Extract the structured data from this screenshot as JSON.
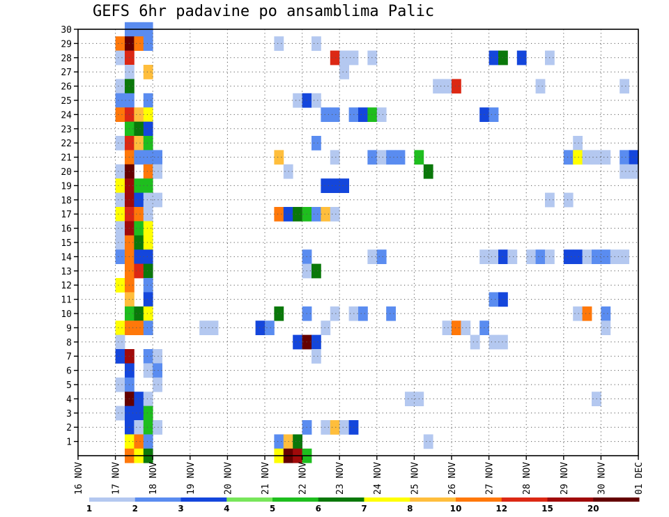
{
  "chart_data": {
    "type": "heatmap",
    "title": "GEFS 6hr padavine po ansamblima Palic",
    "x_ticks": [
      "16 NOV",
      "17 NOV",
      "18 NOV",
      "19 NOV",
      "20 NOV",
      "21 NOV",
      "22 NOV",
      "23 NOV",
      "24 NOV",
      "25 NOV",
      "26 NOV",
      "27 NOV",
      "28 NOV",
      "29 NOV",
      "30 NOV",
      "01 DEC"
    ],
    "y_ticks": [
      "1",
      "2",
      "3",
      "4",
      "5",
      "6",
      "7",
      "8",
      "9",
      "10",
      "11",
      "12",
      "13",
      "14",
      "15",
      "16",
      "17",
      "18",
      "19",
      "20",
      "21",
      "22",
      "23",
      "24",
      "25",
      "26",
      "27",
      "28",
      "29",
      "30"
    ],
    "xlim": [
      "16 NOV",
      "01 DEC"
    ],
    "ylim": [
      0,
      30
    ],
    "x_step_hours": 6,
    "grid": true,
    "colorbar": {
      "labels": [
        "1",
        "2",
        "3",
        "4",
        "5",
        "6",
        "7",
        "8",
        "10",
        "12",
        "15",
        "20"
      ],
      "colors": [
        "#b4c8f0",
        "#5a8cf0",
        "#1446dc",
        "#78e65a",
        "#1ebe1e",
        "#0a780a",
        "#ffff00",
        "#ffbe3c",
        "#ff780a",
        "#dc2814",
        "#a00a0a",
        "#640000"
      ]
    },
    "cells": [
      [
        17.25,
        30,
        2
      ],
      [
        17.5,
        30,
        2
      ],
      [
        17.75,
        30,
        2
      ],
      [
        17.0,
        29,
        10
      ],
      [
        17.25,
        29,
        20
      ],
      [
        17.5,
        29,
        10
      ],
      [
        17.75,
        29,
        2
      ],
      [
        21.25,
        29,
        1
      ],
      [
        22.25,
        29,
        1
      ],
      [
        17.0,
        28,
        1
      ],
      [
        17.25,
        28,
        12
      ],
      [
        22.75,
        28,
        12
      ],
      [
        23.0,
        28,
        1
      ],
      [
        23.25,
        28,
        1
      ],
      [
        23.75,
        28,
        1
      ],
      [
        27.0,
        28,
        3
      ],
      [
        27.25,
        28,
        6
      ],
      [
        27.75,
        28,
        3
      ],
      [
        28.5,
        28,
        1
      ],
      [
        17.25,
        27,
        1
      ],
      [
        17.75,
        27,
        8
      ],
      [
        23.0,
        27,
        1
      ],
      [
        17.0,
        26,
        1
      ],
      [
        17.25,
        26,
        6
      ],
      [
        25.5,
        26,
        1
      ],
      [
        25.75,
        26,
        1
      ],
      [
        26.0,
        26,
        12
      ],
      [
        28.25,
        26,
        1
      ],
      [
        30.5,
        26,
        1
      ],
      [
        17.0,
        25,
        2
      ],
      [
        17.25,
        25,
        2
      ],
      [
        17.75,
        25,
        2
      ],
      [
        21.75,
        25,
        1
      ],
      [
        22.0,
        25,
        3
      ],
      [
        22.25,
        25,
        1
      ],
      [
        17.0,
        24,
        10
      ],
      [
        17.25,
        24,
        12
      ],
      [
        17.5,
        24,
        8
      ],
      [
        17.75,
        24,
        7
      ],
      [
        22.5,
        24,
        2
      ],
      [
        22.75,
        24,
        2
      ],
      [
        23.25,
        24,
        2
      ],
      [
        23.5,
        24,
        3
      ],
      [
        23.75,
        24,
        5
      ],
      [
        24.0,
        24,
        1
      ],
      [
        26.75,
        24,
        3
      ],
      [
        27.0,
        24,
        2
      ],
      [
        17.25,
        23,
        5
      ],
      [
        17.5,
        23,
        6
      ],
      [
        17.75,
        23,
        3
      ],
      [
        17.0,
        22,
        1
      ],
      [
        17.25,
        22,
        12
      ],
      [
        17.5,
        22,
        8
      ],
      [
        17.75,
        22,
        5
      ],
      [
        22.25,
        22,
        2
      ],
      [
        29.25,
        22,
        1
      ],
      [
        17.25,
        21,
        10
      ],
      [
        17.5,
        21,
        2
      ],
      [
        17.75,
        21,
        2
      ],
      [
        18.0,
        21,
        2
      ],
      [
        21.25,
        21,
        8
      ],
      [
        22.75,
        21,
        1
      ],
      [
        23.75,
        21,
        2
      ],
      [
        24.0,
        21,
        1
      ],
      [
        24.25,
        21,
        2
      ],
      [
        24.5,
        21,
        2
      ],
      [
        25.0,
        21,
        5
      ],
      [
        29.0,
        21,
        2
      ],
      [
        29.25,
        21,
        7
      ],
      [
        29.5,
        21,
        1
      ],
      [
        29.75,
        21,
        1
      ],
      [
        30.0,
        21,
        1
      ],
      [
        30.5,
        21,
        2
      ],
      [
        30.75,
        21,
        3
      ],
      [
        17.0,
        20,
        1
      ],
      [
        17.25,
        20,
        20
      ],
      [
        17.75,
        20,
        10
      ],
      [
        18.0,
        20,
        1
      ],
      [
        21.5,
        20,
        1
      ],
      [
        25.25,
        20,
        6
      ],
      [
        30.5,
        20,
        1
      ],
      [
        30.75,
        20,
        1
      ],
      [
        17.0,
        19,
        7
      ],
      [
        17.25,
        19,
        15
      ],
      [
        17.5,
        19,
        5
      ],
      [
        17.75,
        19,
        5
      ],
      [
        22.5,
        19,
        3
      ],
      [
        22.75,
        19,
        3
      ],
      [
        23.0,
        19,
        3
      ],
      [
        17.0,
        18,
        1
      ],
      [
        17.25,
        18,
        15
      ],
      [
        17.5,
        18,
        3
      ],
      [
        17.75,
        18,
        1
      ],
      [
        18.0,
        18,
        1
      ],
      [
        28.5,
        18,
        1
      ],
      [
        29.0,
        18,
        1
      ],
      [
        17.0,
        17,
        7
      ],
      [
        17.25,
        17,
        12
      ],
      [
        17.5,
        17,
        10
      ],
      [
        17.75,
        17,
        1
      ],
      [
        21.25,
        17,
        10
      ],
      [
        21.5,
        17,
        3
      ],
      [
        21.75,
        17,
        6
      ],
      [
        22.0,
        17,
        5
      ],
      [
        22.25,
        17,
        2
      ],
      [
        22.5,
        17,
        8
      ],
      [
        22.75,
        17,
        1
      ],
      [
        17.0,
        16,
        1
      ],
      [
        17.25,
        16,
        15
      ],
      [
        17.5,
        16,
        5
      ],
      [
        17.75,
        16,
        7
      ],
      [
        17.0,
        15,
        1
      ],
      [
        17.25,
        15,
        10
      ],
      [
        17.5,
        15,
        6
      ],
      [
        17.75,
        15,
        7
      ],
      [
        17.0,
        14,
        2
      ],
      [
        17.25,
        14,
        10
      ],
      [
        17.5,
        14,
        3
      ],
      [
        17.75,
        14,
        3
      ],
      [
        22.0,
        14,
        2
      ],
      [
        23.75,
        14,
        1
      ],
      [
        24.0,
        14,
        2
      ],
      [
        26.75,
        14,
        1
      ],
      [
        27.0,
        14,
        1
      ],
      [
        27.25,
        14,
        3
      ],
      [
        27.5,
        14,
        1
      ],
      [
        28.0,
        14,
        1
      ],
      [
        28.25,
        14,
        2
      ],
      [
        28.5,
        14,
        1
      ],
      [
        29.0,
        14,
        3
      ],
      [
        29.25,
        14,
        3
      ],
      [
        29.5,
        14,
        1
      ],
      [
        29.75,
        14,
        2
      ],
      [
        30.0,
        14,
        2
      ],
      [
        30.25,
        14,
        1
      ],
      [
        30.5,
        14,
        1
      ],
      [
        17.25,
        13,
        10
      ],
      [
        17.5,
        13,
        12
      ],
      [
        17.75,
        13,
        6
      ],
      [
        22.0,
        13,
        1
      ],
      [
        22.25,
        13,
        6
      ],
      [
        17.0,
        12,
        7
      ],
      [
        17.25,
        12,
        10
      ],
      [
        17.75,
        12,
        2
      ],
      [
        17.25,
        11,
        8
      ],
      [
        17.75,
        11,
        3
      ],
      [
        27.0,
        11,
        2
      ],
      [
        27.25,
        11,
        3
      ],
      [
        17.25,
        10,
        5
      ],
      [
        17.5,
        10,
        6
      ],
      [
        17.75,
        10,
        7
      ],
      [
        21.25,
        10,
        6
      ],
      [
        22.0,
        10,
        2
      ],
      [
        22.75,
        10,
        1
      ],
      [
        23.25,
        10,
        1
      ],
      [
        23.5,
        10,
        2
      ],
      [
        24.25,
        10,
        2
      ],
      [
        29.25,
        10,
        1
      ],
      [
        29.5,
        10,
        10
      ],
      [
        30.0,
        10,
        2
      ],
      [
        17.0,
        9,
        7
      ],
      [
        17.25,
        9,
        10
      ],
      [
        17.5,
        9,
        10
      ],
      [
        17.75,
        9,
        2
      ],
      [
        19.25,
        9,
        1
      ],
      [
        19.5,
        9,
        1
      ],
      [
        20.75,
        9,
        3
      ],
      [
        21.0,
        9,
        2
      ],
      [
        22.5,
        9,
        1
      ],
      [
        25.75,
        9,
        1
      ],
      [
        26.0,
        9,
        10
      ],
      [
        26.25,
        9,
        1
      ],
      [
        26.75,
        9,
        2
      ],
      [
        30.0,
        9,
        1
      ],
      [
        17.0,
        8,
        1
      ],
      [
        21.75,
        8,
        3
      ],
      [
        22.0,
        8,
        20
      ],
      [
        22.25,
        8,
        3
      ],
      [
        26.5,
        8,
        1
      ],
      [
        27.0,
        8,
        1
      ],
      [
        27.25,
        8,
        1
      ],
      [
        17.0,
        7,
        3
      ],
      [
        17.25,
        7,
        15
      ],
      [
        17.75,
        7,
        2
      ],
      [
        18.0,
        7,
        1
      ],
      [
        22.25,
        7,
        1
      ],
      [
        17.25,
        6,
        3
      ],
      [
        17.75,
        6,
        1
      ],
      [
        18.0,
        6,
        2
      ],
      [
        17.0,
        5,
        1
      ],
      [
        17.25,
        5,
        2
      ],
      [
        18.0,
        5,
        1
      ],
      [
        17.25,
        4,
        20
      ],
      [
        17.5,
        4,
        3
      ],
      [
        17.75,
        4,
        1
      ],
      [
        24.75,
        4,
        1
      ],
      [
        25.0,
        4,
        1
      ],
      [
        29.75,
        4,
        1
      ],
      [
        17.0,
        3,
        1
      ],
      [
        17.25,
        3,
        3
      ],
      [
        17.5,
        3,
        3
      ],
      [
        17.75,
        3,
        5
      ],
      [
        17.25,
        2,
        3
      ],
      [
        17.5,
        2,
        1
      ],
      [
        17.75,
        2,
        5
      ],
      [
        18.0,
        2,
        1
      ],
      [
        22.0,
        2,
        2
      ],
      [
        22.5,
        2,
        1
      ],
      [
        22.75,
        2,
        8
      ],
      [
        23.0,
        2,
        1
      ],
      [
        23.25,
        2,
        3
      ],
      [
        17.25,
        1,
        7
      ],
      [
        17.5,
        1,
        10
      ],
      [
        17.75,
        1,
        2
      ],
      [
        21.25,
        1,
        2
      ],
      [
        21.5,
        1,
        8
      ],
      [
        21.75,
        1,
        6
      ],
      [
        25.25,
        1,
        1
      ],
      [
        17.25,
        0,
        10
      ],
      [
        17.5,
        0,
        7
      ],
      [
        17.75,
        0,
        6
      ],
      [
        21.25,
        0,
        7
      ],
      [
        21.5,
        0,
        20
      ],
      [
        21.75,
        0,
        15
      ],
      [
        22.0,
        0,
        5
      ]
    ]
  }
}
